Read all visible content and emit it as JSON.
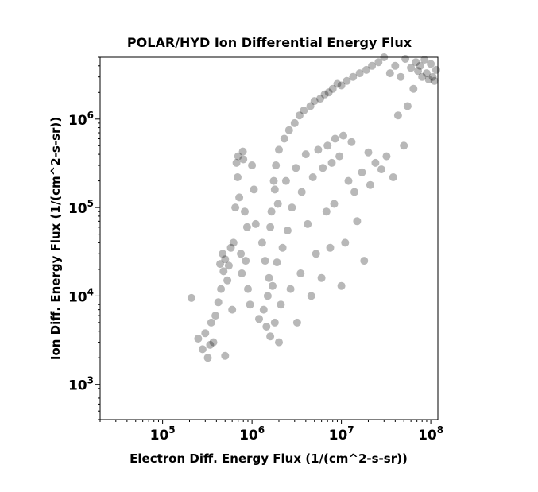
{
  "chart_data": {
    "type": "scatter",
    "title": "POLAR/HYD  Ion Differential Energy Flux",
    "xlabel": "Electron Diff. Energy Flux (1/(cm^2-s-sr))",
    "ylabel": "Ion Diff. Energy Flux (1/(cm^2-s-sr))",
    "xscale": "log",
    "yscale": "log",
    "xlim": [
      20000,
      120000000
    ],
    "ylim": [
      400,
      5000000
    ],
    "x_ticks": [
      {
        "base": "10",
        "exp": "5"
      },
      {
        "base": "10",
        "exp": "6"
      },
      {
        "base": "10",
        "exp": "7"
      },
      {
        "base": "10",
        "exp": "8"
      }
    ],
    "y_ticks": [
      {
        "base": "10",
        "exp": "3"
      },
      {
        "base": "10",
        "exp": "4"
      },
      {
        "base": "10",
        "exp": "5"
      },
      {
        "base": "10",
        "exp": "6"
      }
    ],
    "marker_color": "#000000",
    "marker_alpha": 0.28,
    "grid": false,
    "legend": "none",
    "series": [
      {
        "values": [
          [
            210000.0,
            9500.0
          ],
          [
            250000.0,
            3300.0
          ],
          [
            280000.0,
            2500.0
          ],
          [
            300000.0,
            3800.0
          ],
          [
            320000.0,
            2000.0
          ],
          [
            340000.0,
            2800.0
          ],
          [
            350000.0,
            5000.0
          ],
          [
            370000.0,
            3000.0
          ],
          [
            390000.0,
            6000.0
          ],
          [
            420000.0,
            8500.0
          ],
          [
            440000.0,
            23000.0
          ],
          [
            450000.0,
            12000.0
          ],
          [
            470000.0,
            30000.0
          ],
          [
            480000.0,
            19000.0
          ],
          [
            500000.0,
            26000.0
          ],
          [
            500000.0,
            2100.0
          ],
          [
            530000.0,
            15000.0
          ],
          [
            550000.0,
            22000.0
          ],
          [
            580000.0,
            35000.0
          ],
          [
            600000.0,
            7000.0
          ],
          [
            620000.0,
            40000.0
          ],
          [
            650000.0,
            100000.0
          ],
          [
            670000.0,
            320000.0
          ],
          [
            690000.0,
            220000.0
          ],
          [
            700000.0,
            380000.0
          ],
          [
            720000.0,
            130000.0
          ],
          [
            750000.0,
            30000.0
          ],
          [
            770000.0,
            18000.0
          ],
          [
            790000.0,
            430000.0
          ],
          [
            800000.0,
            350000.0
          ],
          [
            830000.0,
            90000.0
          ],
          [
            850000.0,
            25000.0
          ],
          [
            880000.0,
            60000.0
          ],
          [
            900000.0,
            12000.0
          ],
          [
            950000.0,
            8000.0
          ],
          [
            1000000.0,
            300000.0
          ],
          [
            1050000.0,
            160000.0
          ],
          [
            1100000.0,
            65000.0
          ],
          [
            1200000.0,
            5500.0
          ],
          [
            1300000.0,
            40000.0
          ],
          [
            1350000.0,
            7000.0
          ],
          [
            1400000.0,
            25000.0
          ],
          [
            1450000.0,
            4500.0
          ],
          [
            1500000.0,
            10000.0
          ],
          [
            1550000.0,
            16000.0
          ],
          [
            1600000.0,
            3500.0
          ],
          [
            1600000.0,
            60000.0
          ],
          [
            1650000.0,
            90000.0
          ],
          [
            1700000.0,
            13000.0
          ],
          [
            1750000.0,
            200000.0
          ],
          [
            1800000.0,
            160000.0
          ],
          [
            1800000.0,
            5000.0
          ],
          [
            1850000.0,
            300000.0
          ],
          [
            1900000.0,
            24000.0
          ],
          [
            1950000.0,
            110000.0
          ],
          [
            2000000.0,
            3000.0
          ],
          [
            2000000.0,
            450000.0
          ],
          [
            2100000.0,
            8000.0
          ],
          [
            2200000.0,
            35000.0
          ],
          [
            2300000.0,
            600000.0
          ],
          [
            2400000.0,
            200000.0
          ],
          [
            2500000.0,
            55000.0
          ],
          [
            2600000.0,
            750000.0
          ],
          [
            2700000.0,
            12000.0
          ],
          [
            2800000.0,
            100000.0
          ],
          [
            3000000.0,
            900000.0
          ],
          [
            3100000.0,
            280000.0
          ],
          [
            3200000.0,
            5000.0
          ],
          [
            3400000.0,
            1100000.0
          ],
          [
            3500000.0,
            18000.0
          ],
          [
            3600000.0,
            150000.0
          ],
          [
            3800000.0,
            1250000.0
          ],
          [
            4000000.0,
            400000.0
          ],
          [
            4200000.0,
            65000.0
          ],
          [
            4500000.0,
            1400000.0
          ],
          [
            4600000.0,
            10000.0
          ],
          [
            4800000.0,
            220000.0
          ],
          [
            5000000.0,
            1600000.0
          ],
          [
            5200000.0,
            30000.0
          ],
          [
            5500000.0,
            450000.0
          ],
          [
            5800000.0,
            1700000.0
          ],
          [
            6000000.0,
            16000.0
          ],
          [
            6200000.0,
            280000.0
          ],
          [
            6500000.0,
            1900000.0
          ],
          [
            6800000.0,
            90000.0
          ],
          [
            7000000.0,
            500000.0
          ],
          [
            7200000.0,
            2000000.0
          ],
          [
            7500000.0,
            35000.0
          ],
          [
            7800000.0,
            320000.0
          ],
          [
            8000000.0,
            2200000.0
          ],
          [
            8300000.0,
            110000.0
          ],
          [
            8500000.0,
            600000.0
          ],
          [
            9000000.0,
            2500000.0
          ],
          [
            9500000.0,
            380000.0
          ],
          [
            10000000.0,
            13000.0
          ],
          [
            10000000.0,
            2400000.0
          ],
          [
            10500000.0,
            650000.0
          ],
          [
            11000000.0,
            40000.0
          ],
          [
            11500000.0,
            2700000.0
          ],
          [
            12000000.0,
            200000.0
          ],
          [
            13000000.0,
            550000.0
          ],
          [
            13500000.0,
            3000000.0
          ],
          [
            14000000.0,
            150000.0
          ],
          [
            15000000.0,
            70000.0
          ],
          [
            16000000.0,
            3300000.0
          ],
          [
            17000000.0,
            250000.0
          ],
          [
            18000000.0,
            25000.0
          ],
          [
            19000000.0,
            3600000.0
          ],
          [
            20000000.0,
            420000.0
          ],
          [
            21000000.0,
            180000.0
          ],
          [
            22000000.0,
            4000000.0
          ],
          [
            24000000.0,
            320000.0
          ],
          [
            26000000.0,
            4400000.0
          ],
          [
            28000000.0,
            270000.0
          ],
          [
            30000000.0,
            5000000.0
          ],
          [
            32000000.0,
            380000.0
          ],
          [
            35000000.0,
            3300000.0
          ],
          [
            38000000.0,
            220000.0
          ],
          [
            40000000.0,
            4000000.0
          ],
          [
            43000000.0,
            1100000.0
          ],
          [
            46000000.0,
            3000000.0
          ],
          [
            50000000.0,
            500000.0
          ],
          [
            52000000.0,
            4800000.0
          ],
          [
            55000000.0,
            1400000.0
          ],
          [
            60000000.0,
            3800000.0
          ],
          [
            64000000.0,
            2200000.0
          ],
          [
            68000000.0,
            4400000.0
          ],
          [
            72000000.0,
            3500000.0
          ],
          [
            76000000.0,
            4000000.0
          ],
          [
            80000000.0,
            3000000.0
          ],
          [
            85000000.0,
            4700000.0
          ],
          [
            90000000.0,
            3300000.0
          ],
          [
            95000000.0,
            2800000.0
          ],
          [
            100000000.0,
            4200000.0
          ],
          [
            105000000.0,
            3000000.0
          ],
          [
            110000000.0,
            2700000.0
          ],
          [
            115000000.0,
            3600000.0
          ]
        ]
      }
    ]
  }
}
